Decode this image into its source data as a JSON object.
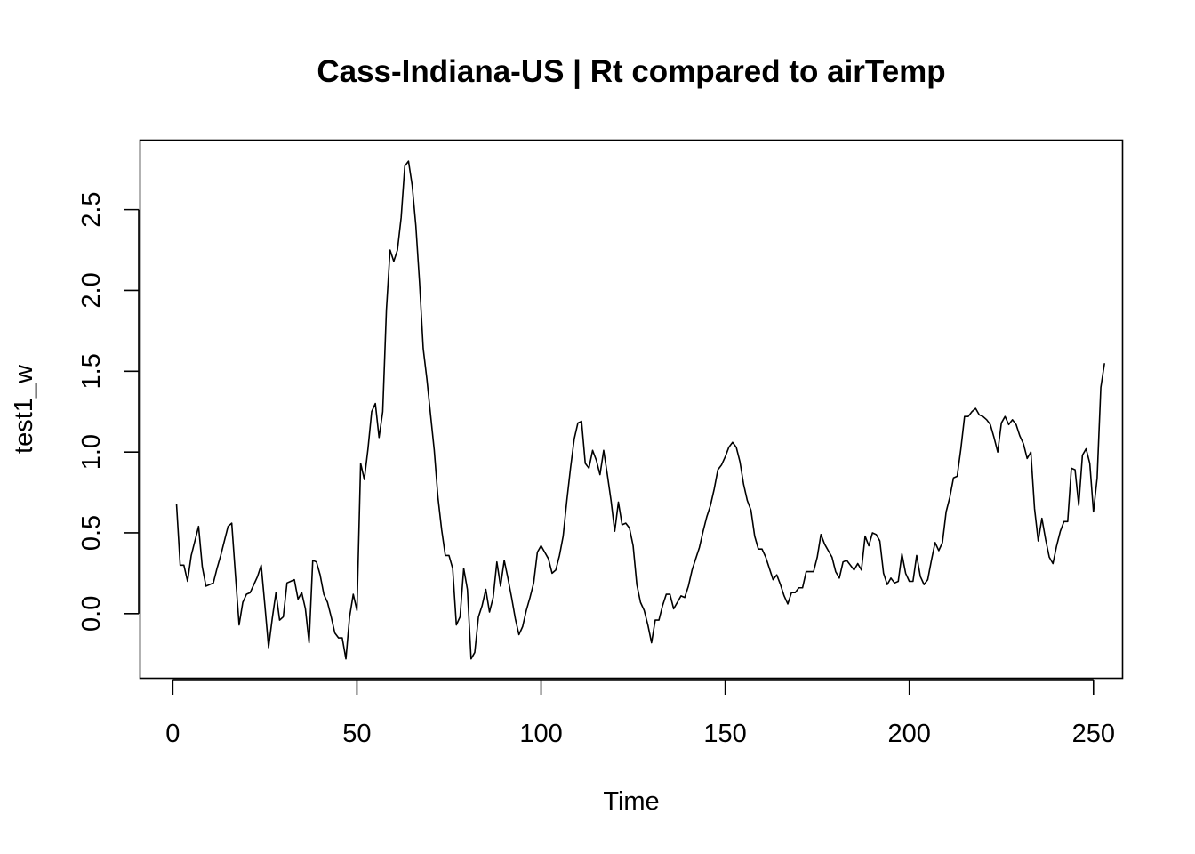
{
  "chart_data": {
    "type": "line",
    "title": "Cass-Indiana-US | Rt compared to airTemp",
    "xlabel": "Time",
    "ylabel": "test1_w",
    "xlim": [
      -8.9,
      257.9
    ],
    "ylim": [
      -0.4,
      2.93
    ],
    "x_ticks": [
      0,
      50,
      100,
      150,
      200,
      250
    ],
    "y_ticks": [
      0.0,
      0.5,
      1.0,
      1.5,
      2.0,
      2.5
    ],
    "x_tick_labels": [
      "0",
      "50",
      "100",
      "150",
      "200",
      "250"
    ],
    "y_tick_labels": [
      "0.0",
      "0.5",
      "1.0",
      "1.5",
      "2.0",
      "2.5"
    ],
    "grid": false,
    "colors": {
      "line": "#000000",
      "axes": "#000000",
      "background": "#ffffff"
    },
    "series": [
      {
        "x_start": 1,
        "x_step": 1,
        "values": [
          0.68,
          0.3,
          0.3,
          0.2,
          0.36,
          0.45,
          0.54,
          0.29,
          0.17,
          0.18,
          0.19,
          0.28,
          0.36,
          0.45,
          0.54,
          0.56,
          0.24,
          -0.07,
          0.07,
          0.12,
          0.13,
          0.18,
          0.23,
          0.3,
          0.05,
          -0.21,
          -0.03,
          0.13,
          -0.04,
          -0.02,
          0.19,
          0.2,
          0.21,
          0.09,
          0.13,
          0.03,
          -0.18,
          0.33,
          0.32,
          0.24,
          0.12,
          0.07,
          -0.02,
          -0.12,
          -0.15,
          -0.15,
          -0.28,
          -0.02,
          0.12,
          0.02,
          0.93,
          0.83,
          1.02,
          1.25,
          1.3,
          1.09,
          1.25,
          1.88,
          2.25,
          2.18,
          2.25,
          2.45,
          2.77,
          2.8,
          2.65,
          2.4,
          2.05,
          1.64,
          1.45,
          1.23,
          1.01,
          0.72,
          0.52,
          0.36,
          0.36,
          0.28,
          -0.07,
          -0.02,
          0.28,
          0.15,
          -0.28,
          -0.24,
          -0.02,
          0.05,
          0.15,
          0.01,
          0.1,
          0.32,
          0.17,
          0.33,
          0.22,
          0.1,
          -0.03,
          -0.13,
          -0.08,
          0.02,
          0.1,
          0.19,
          0.38,
          0.42,
          0.38,
          0.34,
          0.25,
          0.27,
          0.36,
          0.48,
          0.7,
          0.9,
          1.08,
          1.18,
          1.19,
          0.93,
          0.9,
          1.01,
          0.95,
          0.86,
          1.01,
          0.86,
          0.7,
          0.51,
          0.69,
          0.55,
          0.56,
          0.53,
          0.42,
          0.18,
          0.07,
          0.02,
          -0.07,
          -0.18,
          -0.04,
          -0.04,
          0.05,
          0.12,
          0.12,
          0.03,
          0.07,
          0.11,
          0.1,
          0.17,
          0.27,
          0.34,
          0.41,
          0.51,
          0.6,
          0.67,
          0.77,
          0.89,
          0.92,
          0.97,
          1.03,
          1.06,
          1.03,
          0.94,
          0.8,
          0.7,
          0.64,
          0.48,
          0.4,
          0.4,
          0.35,
          0.28,
          0.21,
          0.24,
          0.18,
          0.11,
          0.06,
          0.13,
          0.13,
          0.16,
          0.16,
          0.26,
          0.26,
          0.26,
          0.35,
          0.49,
          0.43,
          0.39,
          0.35,
          0.26,
          0.22,
          0.32,
          0.33,
          0.3,
          0.27,
          0.31,
          0.27,
          0.48,
          0.42,
          0.5,
          0.49,
          0.45,
          0.25,
          0.18,
          0.22,
          0.19,
          0.2,
          0.37,
          0.25,
          0.2,
          0.2,
          0.36,
          0.23,
          0.18,
          0.21,
          0.33,
          0.44,
          0.39,
          0.44,
          0.63,
          0.72,
          0.84,
          0.85,
          1.02,
          1.22,
          1.22,
          1.25,
          1.27,
          1.23,
          1.22,
          1.2,
          1.17,
          1.09,
          1.0,
          1.18,
          1.22,
          1.17,
          1.2,
          1.17,
          1.1,
          1.05,
          0.96,
          1.0,
          0.65,
          0.45,
          0.59,
          0.46,
          0.35,
          0.31,
          0.42,
          0.51,
          0.57,
          0.57,
          0.9,
          0.89,
          0.67,
          0.98,
          1.02,
          0.93,
          0.63,
          0.84,
          1.4,
          1.55
        ]
      }
    ]
  }
}
